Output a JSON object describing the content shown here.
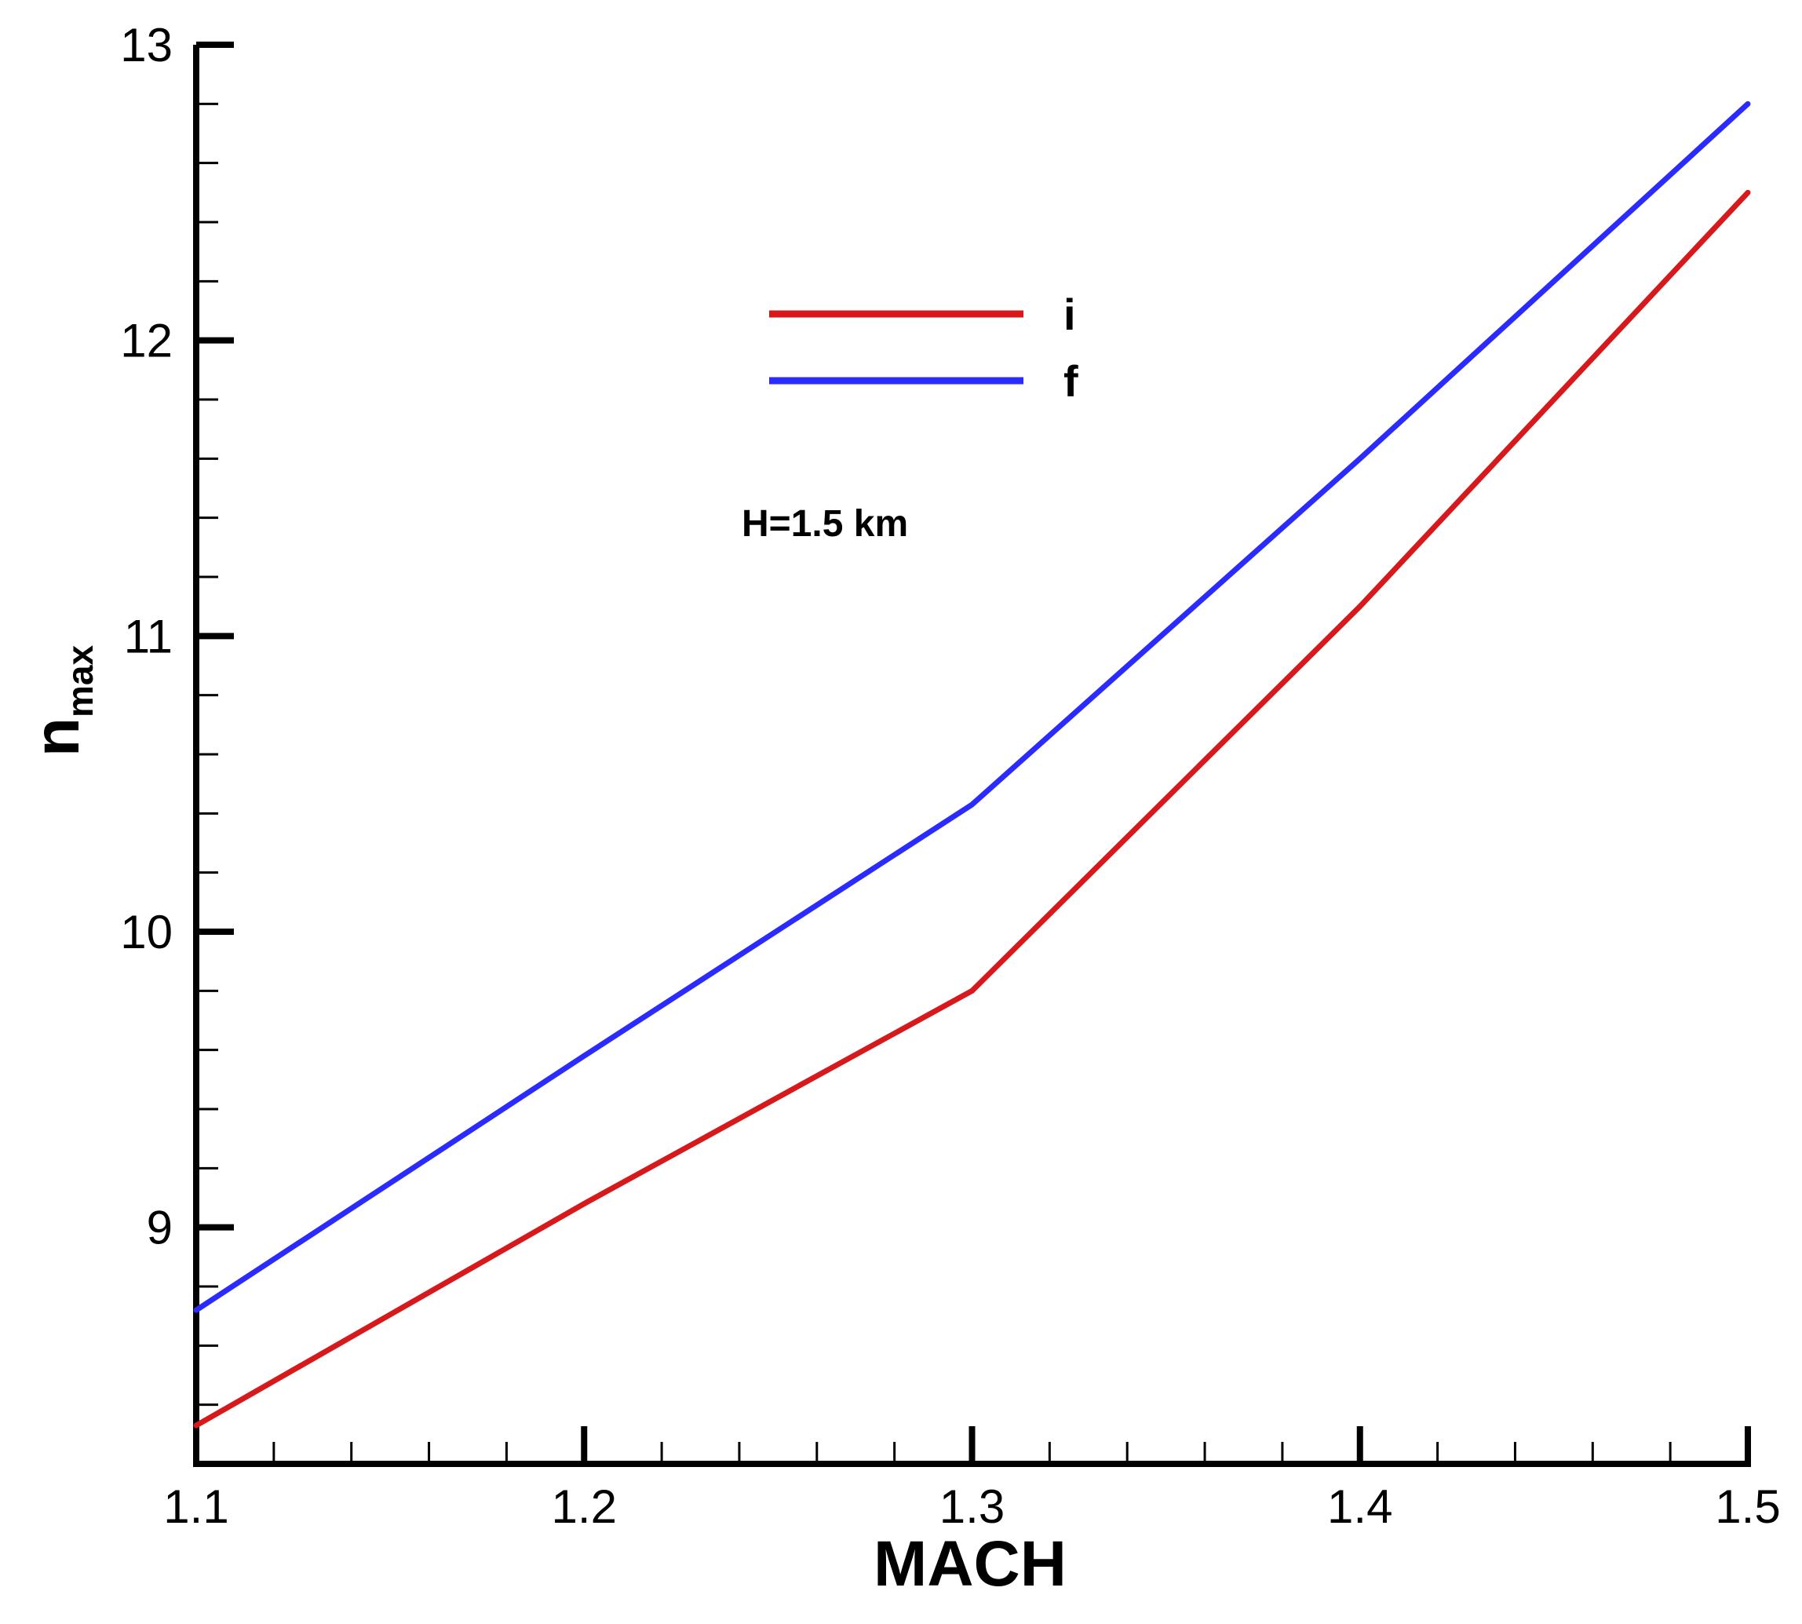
{
  "chart_data": {
    "type": "line",
    "title": "",
    "xlabel": "MACH",
    "ylabel": {
      "main": "n",
      "subscript": "max"
    },
    "annotation": "H=1.5 km",
    "x": [
      1.1,
      1.2,
      1.3,
      1.4,
      1.5
    ],
    "series": [
      {
        "name": "i",
        "color": "#d7191c",
        "values": [
          8.33,
          9.08,
          9.8,
          11.1,
          12.5
        ]
      },
      {
        "name": "f",
        "color": "#2b2bff",
        "values": [
          8.72,
          9.58,
          10.43,
          11.6,
          12.8
        ]
      }
    ],
    "xlim": [
      1.1,
      1.5
    ],
    "ylim": [
      8.2,
      13
    ],
    "xticks": [
      1.1,
      1.2,
      1.3,
      1.4,
      1.5
    ],
    "xtick_labels": [
      "1.1",
      "1.2",
      "1.3",
      "1.4",
      "1.5"
    ],
    "yticks": [
      9,
      10,
      11,
      12,
      13
    ],
    "ytick_labels": [
      "9",
      "10",
      "11",
      "12",
      "13"
    ],
    "grid": false,
    "legend_position": "upper-center"
  }
}
